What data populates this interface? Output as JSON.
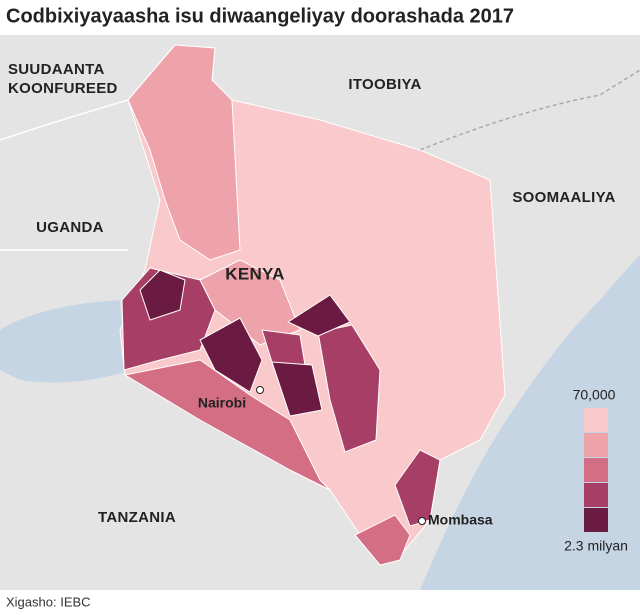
{
  "header": {
    "title": "Codbixiyayaasha isu diwaangeliyay doorashada 2017"
  },
  "map": {
    "countries": {
      "south_sudan": [
        "SUUDAANTA",
        "KOONFUREED"
      ],
      "ethiopia": "ITOOBIYA",
      "somalia": "SOOMAALIYA",
      "uganda": "UGANDA",
      "tanzania": "TANZANIA",
      "kenya": "KENYA"
    },
    "cities": {
      "nairobi": "Nairobi",
      "mombasa": "Mombasa"
    }
  },
  "legend": {
    "top_label": "70,000",
    "bottom_label": "2.3 milyan",
    "colors": [
      "#f9c9cb",
      "#eea3aa",
      "#d46e85",
      "#a63e66",
      "#6b1b41"
    ]
  },
  "footer": {
    "source": "Xigasho: IEBC"
  }
}
